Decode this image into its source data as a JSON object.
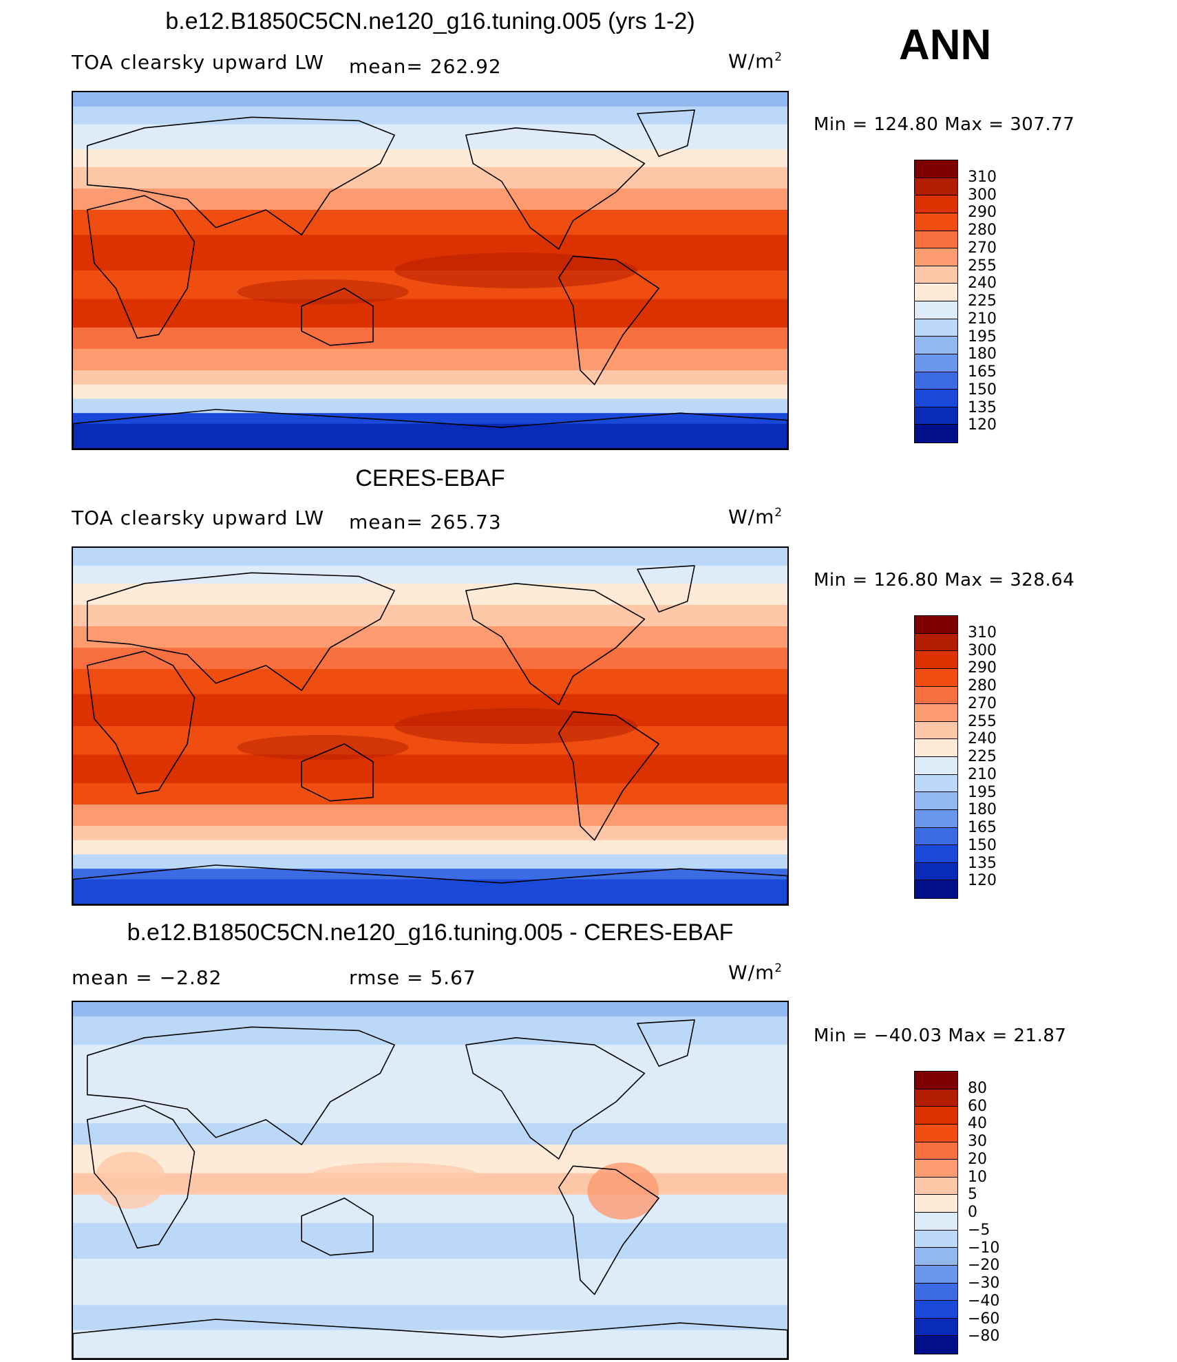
{
  "season": "ANN",
  "panels": [
    {
      "title": "b.e12.B1850C5CN.ne120_g16.tuning.005 (yrs 1-2)",
      "variable": "TOA clearsky upward LW",
      "stat1": "mean= 262.92",
      "stat2": "",
      "units": "W/m",
      "units_sup": "2",
      "minmax": "Min = 124.80 Max = 307.77",
      "map_kind": "model"
    },
    {
      "title": "CERES-EBAF",
      "variable": "TOA clearsky upward LW",
      "stat1": "mean= 265.73",
      "stat2": "",
      "units": "W/m",
      "units_sup": "2",
      "minmax": "Min = 126.80 Max = 328.64",
      "map_kind": "obs"
    },
    {
      "title": "b.e12.B1850C5CN.ne120_g16.tuning.005 - CERES-EBAF",
      "variable": "mean =   −2.82",
      "stat1": "rmse =    5.67",
      "stat2": "",
      "units": "W/m",
      "units_sup": "2",
      "minmax": "Min = −40.03 Max =  21.87",
      "map_kind": "diff"
    }
  ],
  "colorbars": {
    "absolute": {
      "labels": [
        "310",
        "300",
        "290",
        "280",
        "270",
        "255",
        "240",
        "225",
        "210",
        "195",
        "180",
        "165",
        "150",
        "135",
        "120"
      ],
      "colors": [
        "#7f0000",
        "#b41e00",
        "#dc3200",
        "#f04e10",
        "#f87040",
        "#fc9a70",
        "#fec8a8",
        "#fdebd8",
        "#deecfa",
        "#bcd8f8",
        "#92b8f2",
        "#6a96ec",
        "#3c6ce4",
        "#1a48d8",
        "#0a2ab8",
        "#020f8a"
      ]
    },
    "difference": {
      "labels": [
        "80",
        "60",
        "40",
        "30",
        "20",
        "10",
        "5",
        "0",
        "−5",
        "−10",
        "−20",
        "−30",
        "−40",
        "−60",
        "−80"
      ],
      "colors": [
        "#7f0000",
        "#b41e00",
        "#dc3200",
        "#f04e10",
        "#f87040",
        "#fc9a70",
        "#fec8a8",
        "#fdebd8",
        "#deecfa",
        "#bcd8f8",
        "#92b8f2",
        "#6a96ec",
        "#3c6ce4",
        "#1a48d8",
        "#0a2ab8",
        "#020f8a"
      ]
    }
  }
}
